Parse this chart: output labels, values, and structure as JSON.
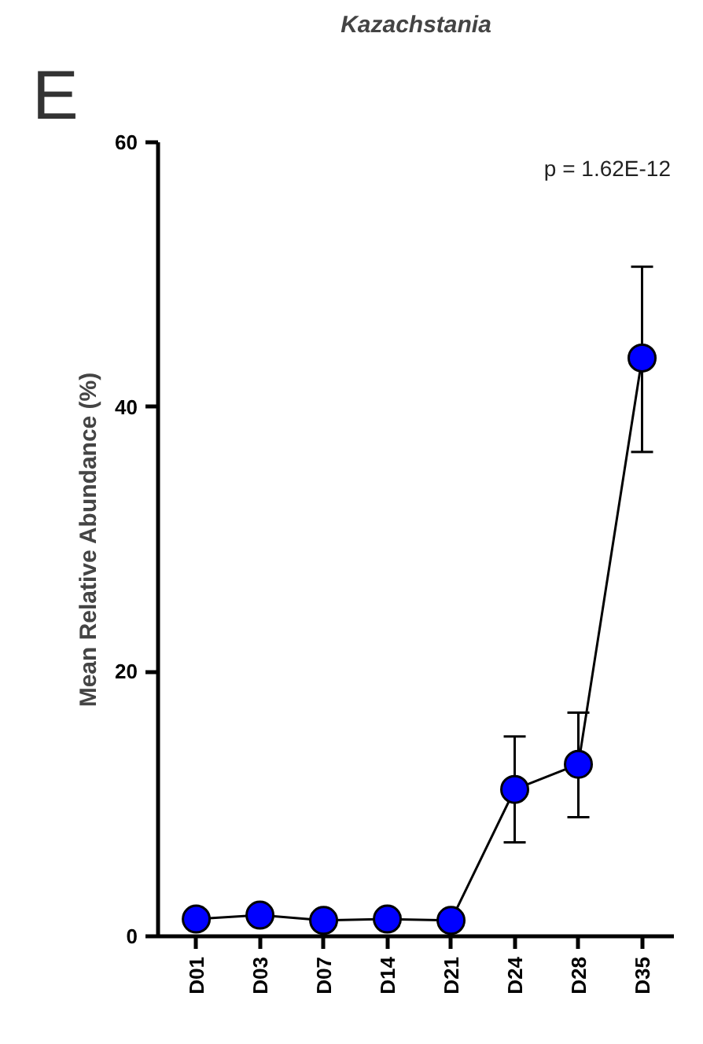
{
  "chart_data": {
    "type": "line",
    "title": "Kazachstania",
    "ylabel": "Mean Relative Abundance (%)",
    "annotations": [
      "E",
      "p = 1.62E-12"
    ],
    "categories": [
      "D01",
      "D03",
      "D07",
      "D14",
      "D21",
      "D24",
      "D28",
      "D35"
    ],
    "values": [
      1.3,
      1.6,
      1.2,
      1.3,
      1.2,
      11.1,
      13.0,
      43.7
    ],
    "errors": [
      null,
      null,
      null,
      null,
      null,
      [
        7.1,
        15.1
      ],
      [
        9.0,
        16.9
      ],
      [
        36.6,
        50.6
      ]
    ],
    "color": "#0000ff",
    "marker": "circle",
    "line_style": "solid",
    "grid": false,
    "ylim": [
      0,
      60
    ],
    "yticks": [
      0,
      20,
      40,
      60
    ]
  }
}
